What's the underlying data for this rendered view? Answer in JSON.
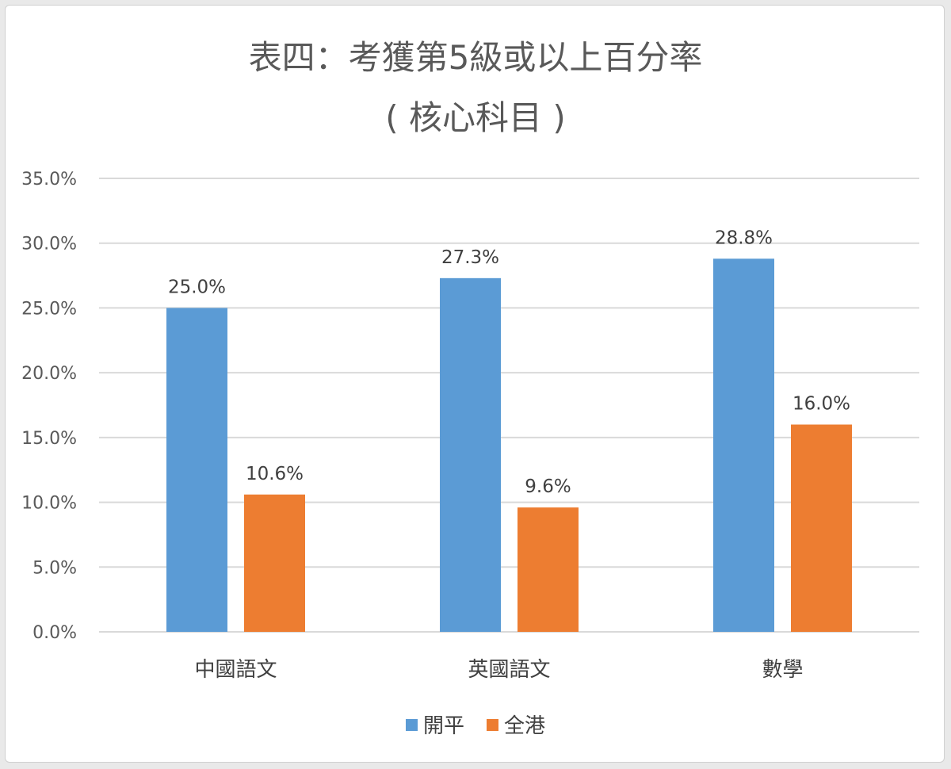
{
  "chart_data": {
    "type": "bar",
    "title_line1": "表四：考獲第5級或以上百分率",
    "title_line2": "( 核心科目 )",
    "categories": [
      "中國語文",
      "英國語文",
      "數學"
    ],
    "series": [
      {
        "name": "開平",
        "color": "#5b9bd5",
        "values": [
          25.0,
          27.3,
          28.8
        ],
        "labels": [
          "25.0%",
          "27.3%",
          "28.8%"
        ]
      },
      {
        "name": "全港",
        "color": "#ed7d31",
        "values": [
          10.6,
          9.6,
          16.0
        ],
        "labels": [
          "10.6%",
          "9.6%",
          "16.0%"
        ]
      }
    ],
    "ylim": [
      0,
      35
    ],
    "ytick_step": 5,
    "ytick_labels": [
      "0.0%",
      "5.0%",
      "10.0%",
      "15.0%",
      "20.0%",
      "25.0%",
      "30.0%",
      "35.0%"
    ],
    "grid": true,
    "gridline_color": "#d9d9d9",
    "legend_position": "bottom"
  }
}
